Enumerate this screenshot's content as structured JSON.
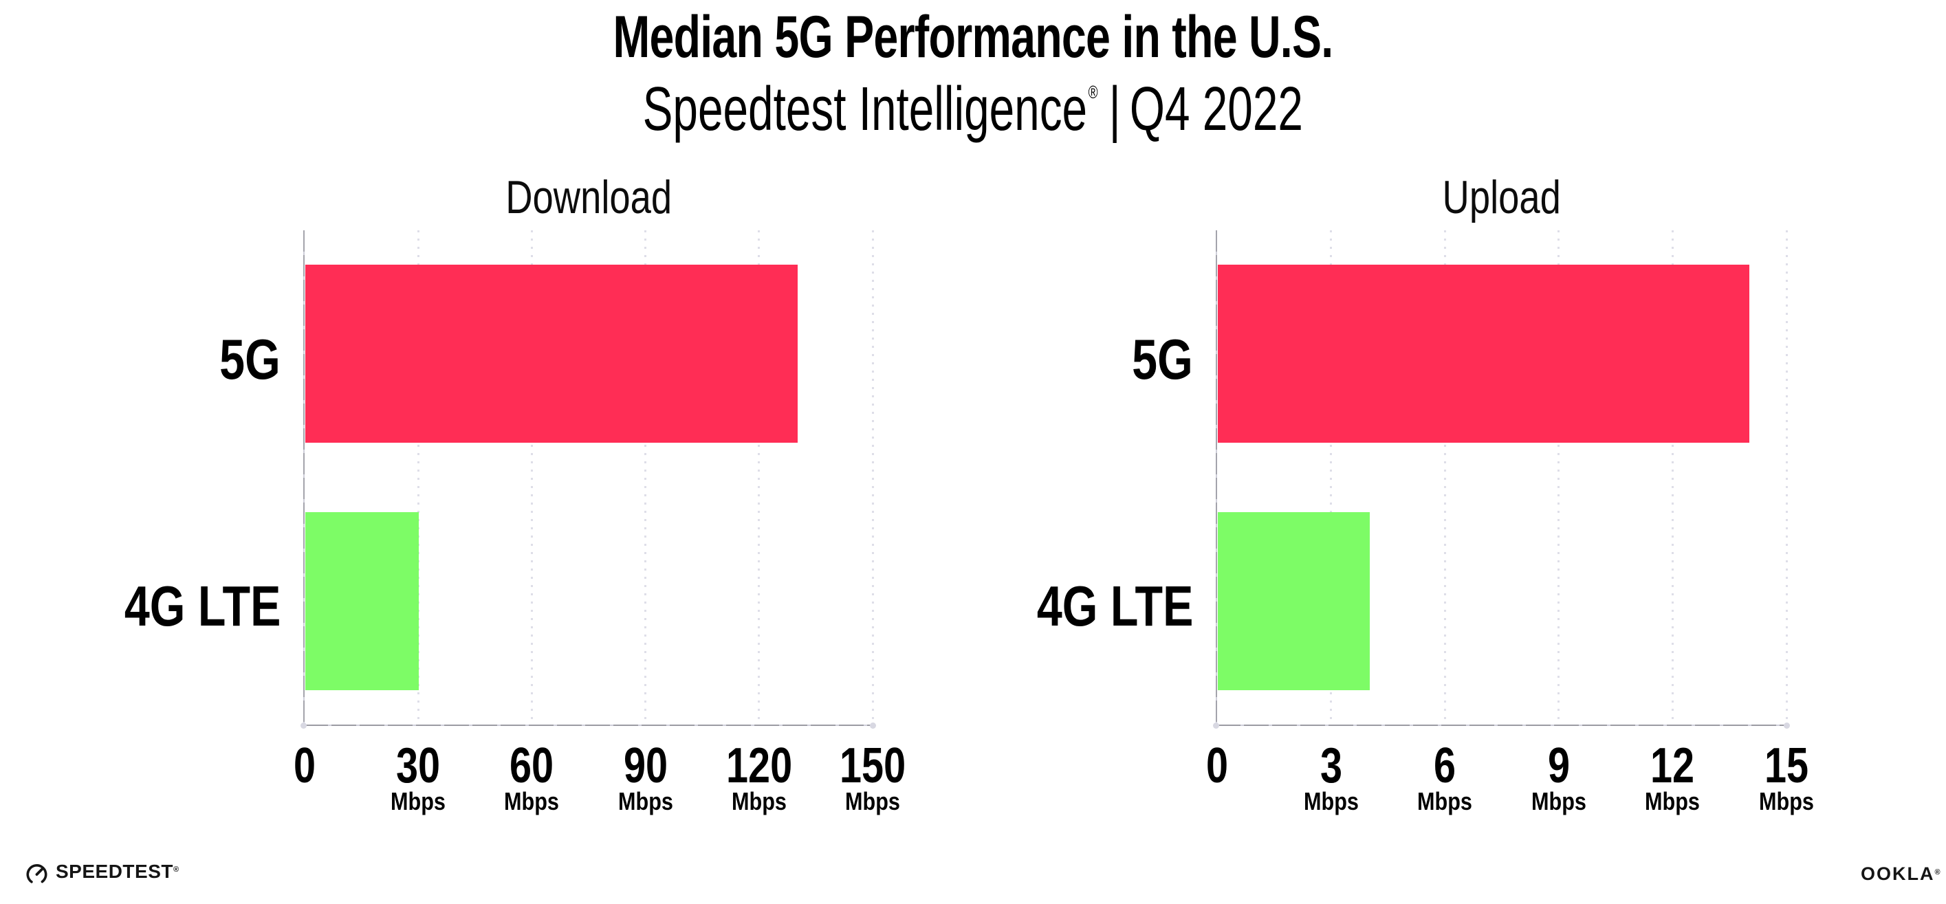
{
  "header": {
    "title": "Median 5G Performance in the U.S.",
    "subtitle_brand": "Speedtest Intelligence",
    "subtitle_registered": "®",
    "subtitle_separator": "|",
    "subtitle_period": "Q4 2022"
  },
  "chart_data": [
    {
      "type": "bar",
      "orientation": "horizontal",
      "title": "Download",
      "categories": [
        "5G",
        "4G LTE"
      ],
      "values": [
        130,
        30
      ],
      "unit": "Mbps",
      "xlim": [
        0,
        150
      ],
      "xticks": [
        0,
        30,
        60,
        90,
        120,
        150
      ],
      "bar_colors": [
        "#FF2D55",
        "#7DFC66"
      ],
      "grid": "vertical-dotted",
      "legend": "none"
    },
    {
      "type": "bar",
      "orientation": "horizontal",
      "title": "Upload",
      "categories": [
        "5G",
        "4G LTE"
      ],
      "values": [
        14,
        4
      ],
      "unit": "Mbps",
      "xlim": [
        0,
        15
      ],
      "xticks": [
        0,
        3,
        6,
        9,
        12,
        15
      ],
      "bar_colors": [
        "#FF2D55",
        "#7DFC66"
      ],
      "grid": "vertical-dotted",
      "legend": "none"
    }
  ],
  "footer": {
    "speedtest_logo": "SPEEDTEST",
    "speedtest_registered": "®",
    "ookla_logo": "OOKLA",
    "ookla_registered": "®"
  },
  "colors": {
    "bar_5g": "#FF2D55",
    "bar_4g_lte": "#7DFC66",
    "axis": "#9B9BA3",
    "gridline": "#DEDEE8",
    "text": "#000000",
    "background": "#FFFFFF"
  }
}
